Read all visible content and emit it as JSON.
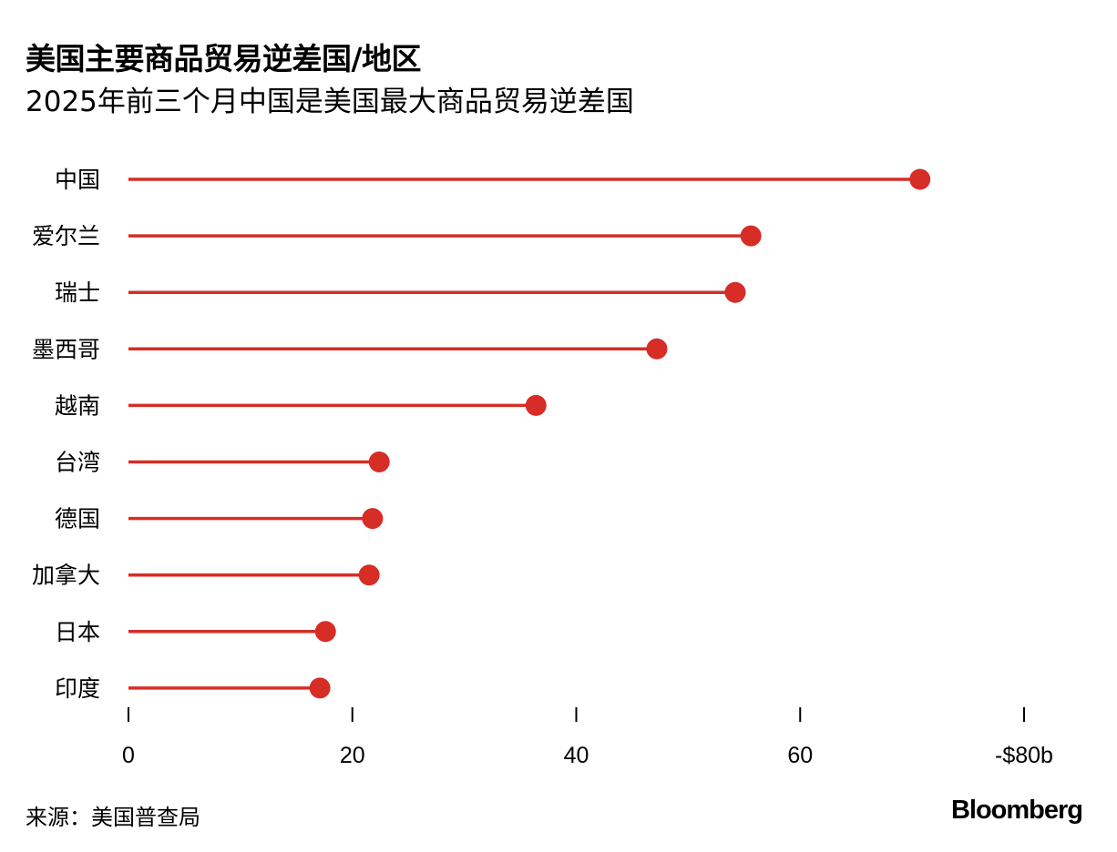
{
  "header": {
    "title": "美国主要商品贸易逆差国/地区",
    "subtitle": "2025年前三个月中国是美国最大商品贸易逆差国"
  },
  "footer": {
    "source": "来源：美国普查局",
    "logo": "Bloomberg"
  },
  "colors": {
    "accent": "#d62d27",
    "axis": "#000000",
    "text": "#000000"
  },
  "chart_data": {
    "type": "lollipop",
    "title": "美国主要商品贸易逆差国/地区",
    "subtitle": "2025年前三个月中国是美国最大商品贸易逆差国",
    "xlim": [
      0,
      80
    ],
    "xticks": [
      0,
      20,
      40,
      60,
      80
    ],
    "xtick_labels": [
      "0",
      "20",
      "40",
      "60",
      "-$80b"
    ],
    "grid": false,
    "categories": [
      "中国",
      "爱尔兰",
      "瑞士",
      "墨西哥",
      "越南",
      "台湾",
      "德国",
      "加拿大",
      "日本",
      "印度"
    ],
    "values": [
      70.7,
      55.6,
      54.2,
      47.2,
      36.4,
      22.4,
      21.8,
      21.5,
      17.6,
      17.1
    ]
  }
}
